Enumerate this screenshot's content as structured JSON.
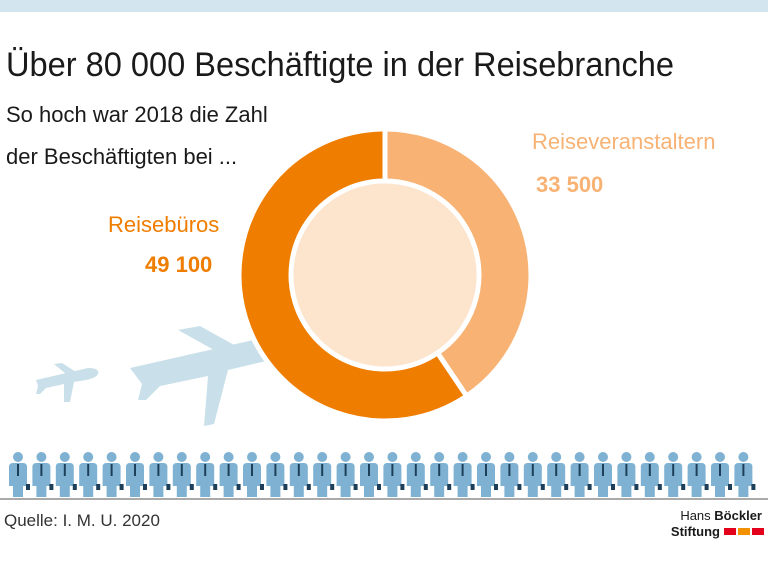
{
  "chart_data": {
    "type": "donut",
    "title": "Über 80 000 Beschäftigte in der Reisebranche",
    "subtitle": [
      "So hoch war 2018 die Zahl",
      "der Beschäftigten bei ..."
    ],
    "categories": [
      "Reiseveranstaltern",
      "Reisebüros"
    ],
    "values": [
      33500,
      49100
    ],
    "value_labels": [
      "33 500",
      "49 100"
    ],
    "colors": [
      "#f8b274",
      "#ef7d00"
    ],
    "source": "Quelle: I. M. U. 2020",
    "logo": [
      "Hans",
      "Böckler",
      "Stiftung"
    ]
  }
}
